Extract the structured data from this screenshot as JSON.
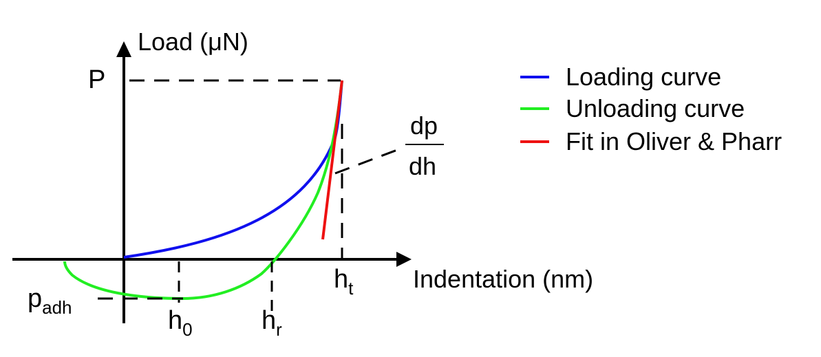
{
  "axes": {
    "y_label": "Load (μN)",
    "x_label": "Indentation (nm)",
    "y_marker": "P"
  },
  "markers": {
    "p_adh": {
      "base": "p",
      "sub": "adh"
    },
    "h0": {
      "base": "h",
      "sub": "0"
    },
    "hr": {
      "base": "h",
      "sub": "r"
    },
    "ht": {
      "base": "h",
      "sub": "t"
    }
  },
  "slope": {
    "numerator": "dp",
    "denominator": "dh"
  },
  "legend": [
    {
      "label": "Loading curve",
      "color": "#1010ee"
    },
    {
      "label": "Unloading curve",
      "color": "#22ee22"
    },
    {
      "label": "Fit in Oliver & Pharr",
      "color": "#ee1111"
    }
  ],
  "colors": {
    "axis": "#000000",
    "dashed": "#000000"
  }
}
